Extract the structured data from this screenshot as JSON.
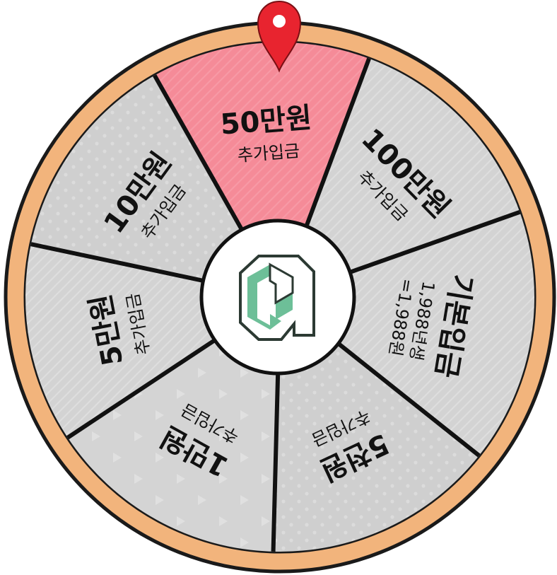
{
  "wheel": {
    "colors": {
      "rim": "#f2b47c",
      "rim_outline": "#1a1a1a",
      "segment": "#d6d6d6",
      "segment_dark": "#cdcdcd",
      "highlight": "#f68e9c",
      "divider": "#111111",
      "pointer": "#e8242f",
      "hub": "#ffffff",
      "logo_green": "#6dbf98",
      "logo_dark": "#2c3a33"
    },
    "segments": [
      {
        "title": "50만원",
        "subtitle": "추가입금",
        "highlighted": true
      },
      {
        "title": "100만원",
        "subtitle": "추가입금",
        "highlighted": false
      },
      {
        "title": "기본입금",
        "subtitle": "1,988년생\n=1,988원",
        "highlighted": false
      },
      {
        "title": "5천원",
        "subtitle": "추가입금",
        "highlighted": false
      },
      {
        "title": "1만원",
        "subtitle": "추가입금",
        "highlighted": false
      },
      {
        "title": "5만원",
        "subtitle": "추가입금",
        "highlighted": false
      },
      {
        "title": "10만원",
        "subtitle": "추가입금",
        "highlighted": false
      }
    ],
    "pointer_icon": "map-pin-icon",
    "hub_icon": "logo-icon"
  }
}
